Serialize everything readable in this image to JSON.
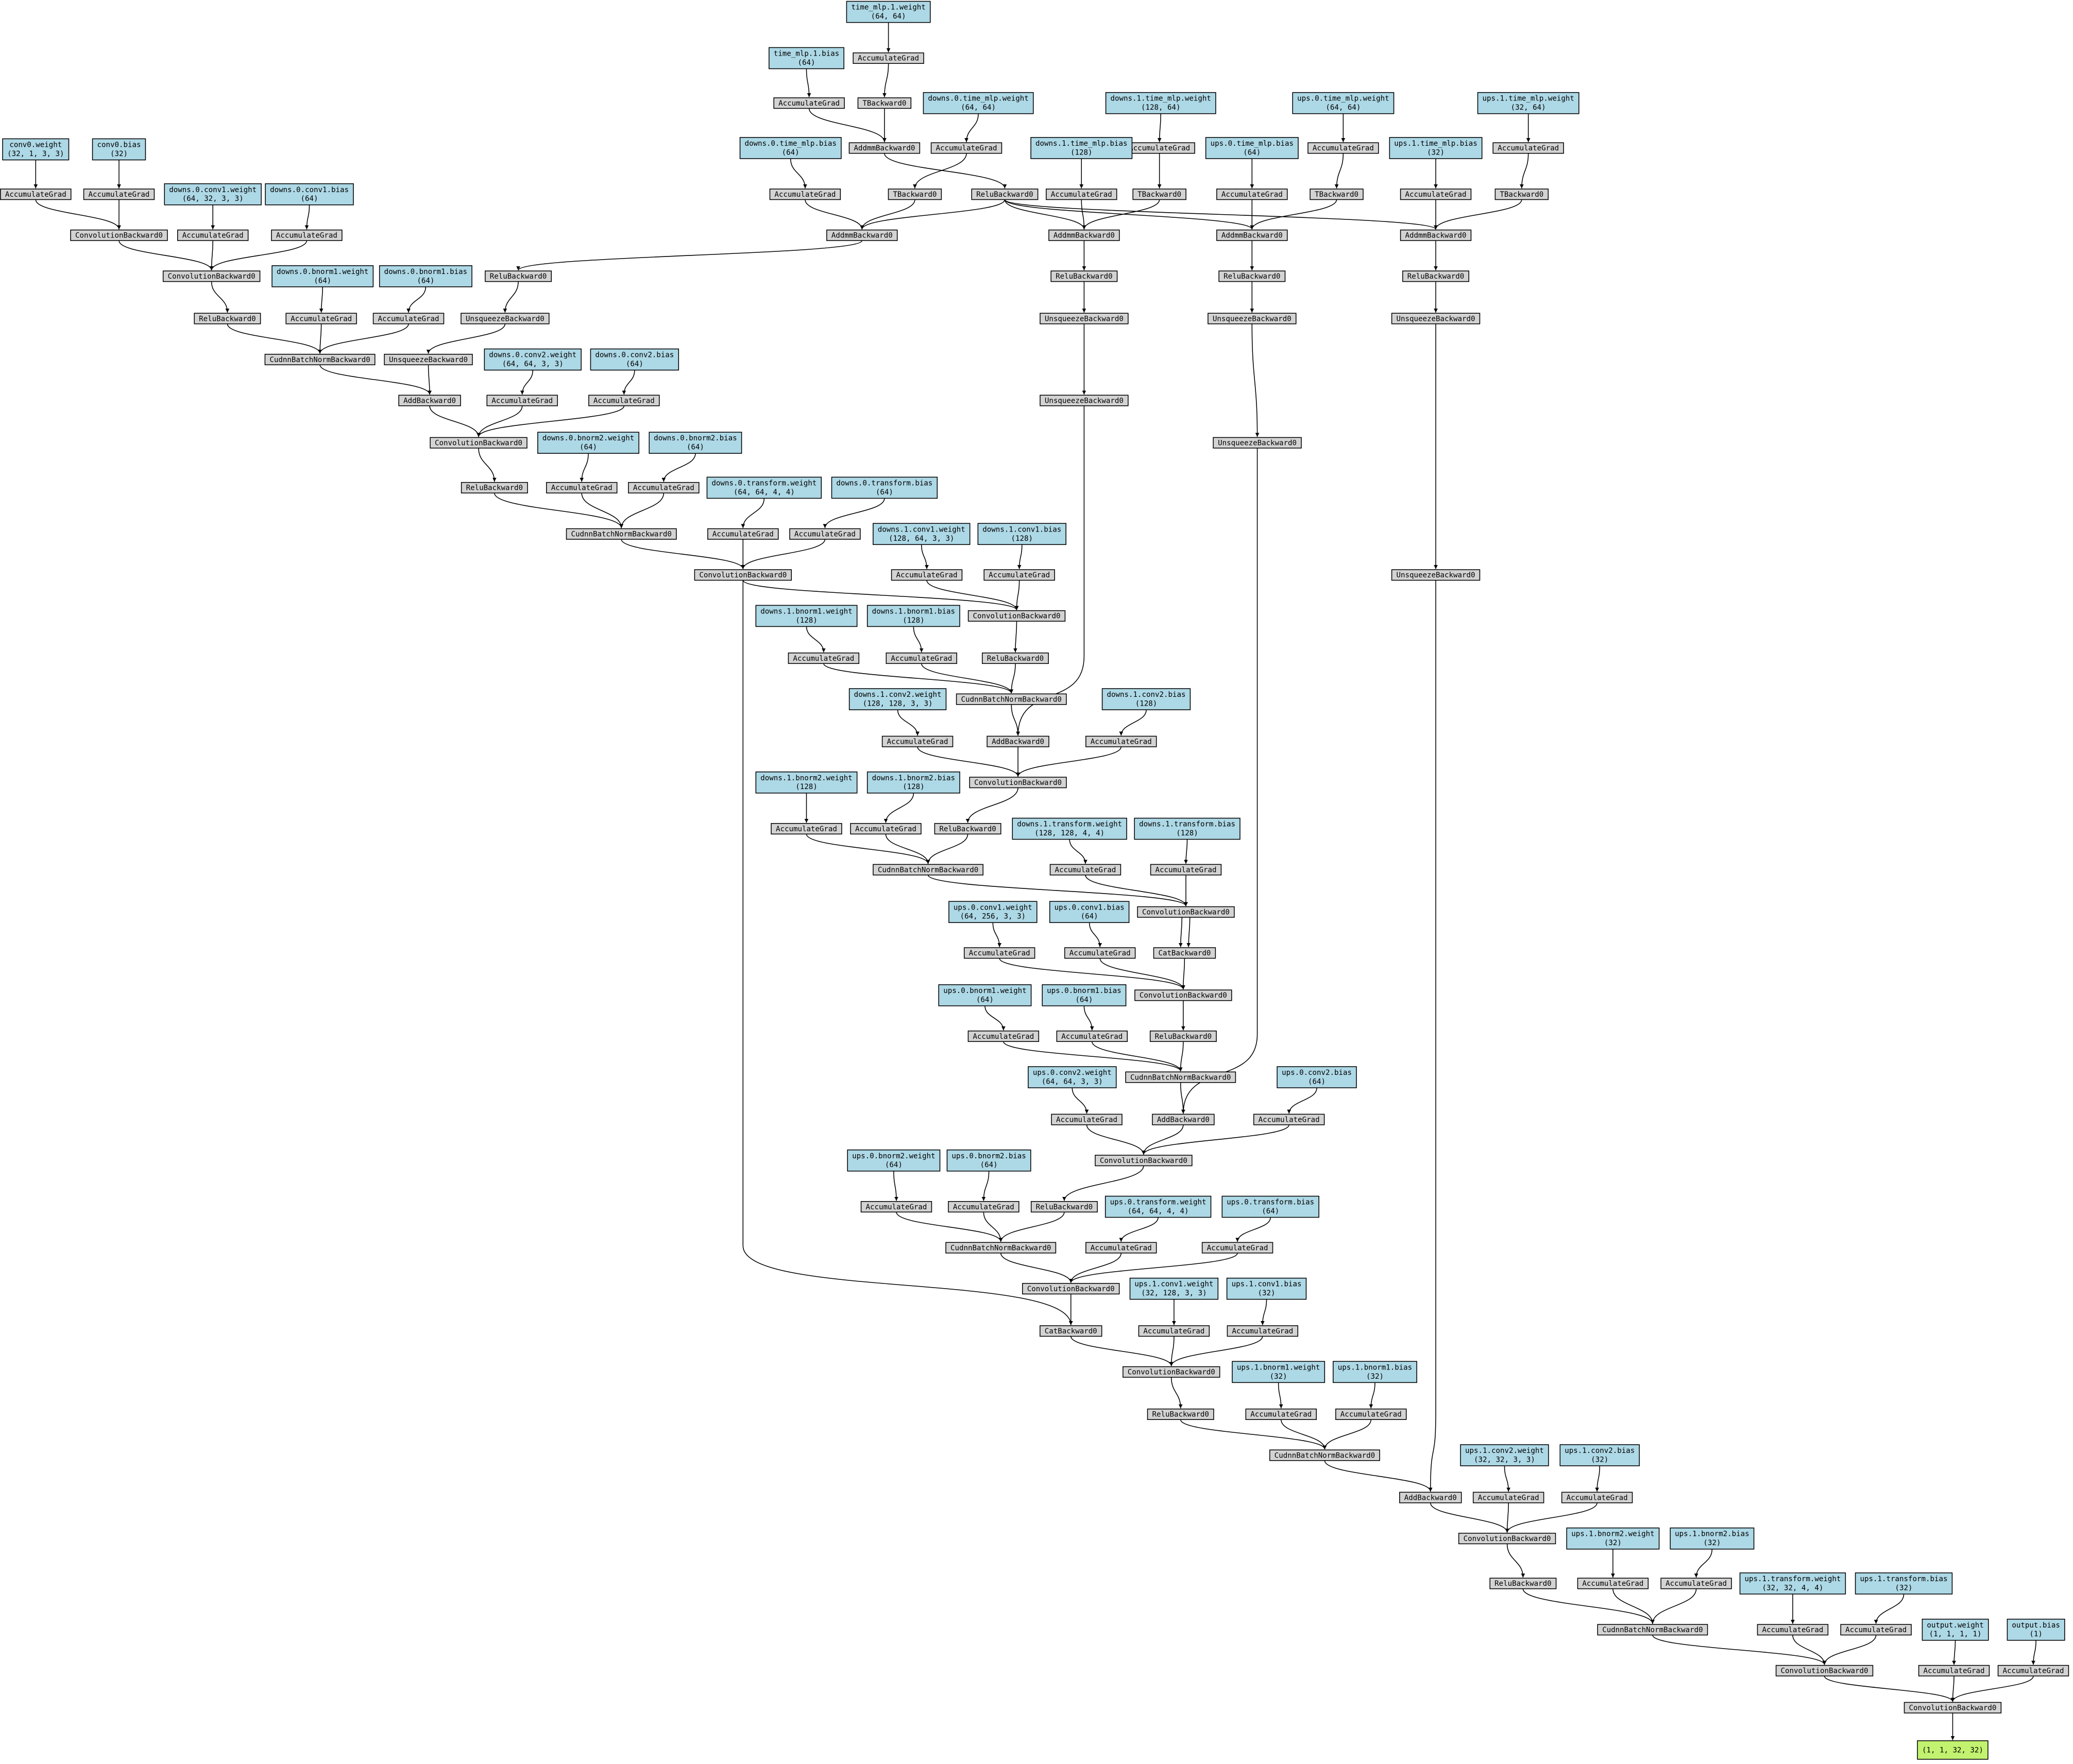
{
  "nodes": [
    {
      "label": "time_mlp.1.weight",
      "shape": "(64, 64)"
    },
    {
      "label": "AccumulateGrad"
    },
    {
      "label": "time_mlp.1.bias",
      "shape": "(64)"
    },
    {
      "label": "AccumulateGrad"
    },
    {
      "label": "TBackward0"
    },
    {
      "label": "downs.0.time_mlp.weight",
      "shape": "(64, 64)"
    },
    {
      "label": "AddmmBackward0"
    },
    {
      "label": "AccumulateGrad"
    },
    {
      "label": "downs.0.time_mlp.bias",
      "shape": "(64)"
    },
    {
      "label": "AccumulateGrad"
    },
    {
      "label": "TBackward0"
    },
    {
      "label": "ReluBackward0"
    },
    {
      "label": "AddmmBackward0"
    },
    {
      "label": "downs.1.time_mlp.weight",
      "shape": "(128, 64)"
    },
    {
      "label": "AccumulateGrad"
    },
    {
      "label": "TBackward0"
    },
    {
      "label": "downs.1.time_mlp.bias",
      "shape": "(128)"
    },
    {
      "label": "AccumulateGrad"
    },
    {
      "label": "AddmmBackward0"
    },
    {
      "label": "ups.0.time_mlp.weight",
      "shape": "(64, 64)"
    },
    {
      "label": "AccumulateGrad"
    },
    {
      "label": "TBackward0"
    },
    {
      "label": "ups.0.time_mlp.bias",
      "shape": "(64)"
    },
    {
      "label": "AccumulateGrad"
    },
    {
      "label": "AddmmBackward0"
    },
    {
      "label": "ups.1.time_mlp.weight",
      "shape": "(32, 64)"
    },
    {
      "label": "AccumulateGrad"
    },
    {
      "label": "TBackward0"
    },
    {
      "label": "ups.1.time_mlp.bias",
      "shape": "(32)"
    },
    {
      "label": "AccumulateGrad"
    },
    {
      "label": "AddmmBackward0"
    },
    {
      "label": "conv0.weight",
      "shape": "(32, 1, 3, 3)"
    },
    {
      "label": "AccumulateGrad"
    },
    {
      "label": "conv0.bias",
      "shape": "(32)"
    },
    {
      "label": "AccumulateGrad"
    },
    {
      "label": "ConvolutionBackward0"
    },
    {
      "label": "downs.0.conv1.weight",
      "shape": "(64, 32, 3, 3)"
    },
    {
      "label": "AccumulateGrad"
    },
    {
      "label": "downs.0.conv1.bias",
      "shape": "(64)"
    },
    {
      "label": "AccumulateGrad"
    },
    {
      "label": "ConvolutionBackward0"
    },
    {
      "label": "ReluBackward0"
    },
    {
      "label": "downs.0.bnorm1.weight",
      "shape": "(64)"
    },
    {
      "label": "AccumulateGrad"
    },
    {
      "label": "downs.0.bnorm1.bias",
      "shape": "(64)"
    },
    {
      "label": "AccumulateGrad"
    },
    {
      "label": "CudnnBatchNormBackward0"
    },
    {
      "label": "ReluBackward0"
    },
    {
      "label": "UnsqueezeBackward0"
    },
    {
      "label": "UnsqueezeBackward0"
    },
    {
      "label": "AddBackward0"
    },
    {
      "label": "downs.0.conv2.weight",
      "shape": "(64, 64, 3, 3)"
    },
    {
      "label": "AccumulateGrad"
    },
    {
      "label": "downs.0.conv2.bias",
      "shape": "(64)"
    },
    {
      "label": "AccumulateGrad"
    },
    {
      "label": "ConvolutionBackward0"
    },
    {
      "label": "ReluBackward0"
    },
    {
      "label": "downs.0.bnorm2.weight",
      "shape": "(64)"
    },
    {
      "label": "AccumulateGrad"
    },
    {
      "label": "downs.0.bnorm2.bias",
      "shape": "(64)"
    },
    {
      "label": "AccumulateGrad"
    },
    {
      "label": "CudnnBatchNormBackward0"
    },
    {
      "label": "downs.0.transform.weight",
      "shape": "(64, 64, 4, 4)"
    },
    {
      "label": "AccumulateGrad"
    },
    {
      "label": "downs.0.transform.bias",
      "shape": "(64)"
    },
    {
      "label": "AccumulateGrad"
    },
    {
      "label": "ConvolutionBackward0"
    },
    {
      "label": "downs.1.conv1.weight",
      "shape": "(128, 64, 3, 3)"
    },
    {
      "label": "AccumulateGrad"
    },
    {
      "label": "downs.1.conv1.bias",
      "shape": "(128)"
    },
    {
      "label": "AccumulateGrad"
    },
    {
      "label": "ConvolutionBackward0"
    },
    {
      "label": "ReluBackward0"
    },
    {
      "label": "downs.1.bnorm1.weight",
      "shape": "(128)"
    },
    {
      "label": "AccumulateGrad"
    },
    {
      "label": "downs.1.bnorm1.bias",
      "shape": "(128)"
    },
    {
      "label": "AccumulateGrad"
    },
    {
      "label": "CudnnBatchNormBackward0"
    },
    {
      "label": "ReluBackward0"
    },
    {
      "label": "UnsqueezeBackward0"
    },
    {
      "label": "UnsqueezeBackward0"
    },
    {
      "label": "AddBackward0"
    },
    {
      "label": "downs.1.conv2.weight",
      "shape": "(128, 128, 3, 3)"
    },
    {
      "label": "AccumulateGrad"
    },
    {
      "label": "downs.1.conv2.bias",
      "shape": "(128)"
    },
    {
      "label": "AccumulateGrad"
    },
    {
      "label": "ConvolutionBackward0"
    },
    {
      "label": "ReluBackward0"
    },
    {
      "label": "downs.1.bnorm2.weight",
      "shape": "(128)"
    },
    {
      "label": "AccumulateGrad"
    },
    {
      "label": "downs.1.bnorm2.bias",
      "shape": "(128)"
    },
    {
      "label": "AccumulateGrad"
    },
    {
      "label": "CudnnBatchNormBackward0"
    },
    {
      "label": "downs.1.transform.weight",
      "shape": "(128, 128, 4, 4)"
    },
    {
      "label": "AccumulateGrad"
    },
    {
      "label": "downs.1.transform.bias",
      "shape": "(128)"
    },
    {
      "label": "AccumulateGrad"
    },
    {
      "label": "ConvolutionBackward0"
    },
    {
      "label": "CatBackward0"
    },
    {
      "label": "ups.0.conv1.weight",
      "shape": "(64, 256, 3, 3)"
    },
    {
      "label": "AccumulateGrad"
    },
    {
      "label": "ups.0.conv1.bias",
      "shape": "(64)"
    },
    {
      "label": "AccumulateGrad"
    },
    {
      "label": "ConvolutionBackward0"
    },
    {
      "label": "ReluBackward0"
    },
    {
      "label": "ups.0.bnorm1.weight",
      "shape": "(64)"
    },
    {
      "label": "AccumulateGrad"
    },
    {
      "label": "ups.0.bnorm1.bias",
      "shape": "(64)"
    },
    {
      "label": "AccumulateGrad"
    },
    {
      "label": "CudnnBatchNormBackward0"
    },
    {
      "label": "ReluBackward0"
    },
    {
      "label": "UnsqueezeBackward0"
    },
    {
      "label": "UnsqueezeBackward0"
    },
    {
      "label": "AddBackward0"
    },
    {
      "label": "ups.0.conv2.weight",
      "shape": "(64, 64, 3, 3)"
    },
    {
      "label": "AccumulateGrad"
    },
    {
      "label": "ups.0.conv2.bias",
      "shape": "(64)"
    },
    {
      "label": "AccumulateGrad"
    },
    {
      "label": "ConvolutionBackward0"
    },
    {
      "label": "ReluBackward0"
    },
    {
      "label": "ups.0.bnorm2.weight",
      "shape": "(64)"
    },
    {
      "label": "AccumulateGrad"
    },
    {
      "label": "ups.0.bnorm2.bias",
      "shape": "(64)"
    },
    {
      "label": "AccumulateGrad"
    },
    {
      "label": "CudnnBatchNormBackward0"
    },
    {
      "label": "ups.0.transform.weight",
      "shape": "(64, 64, 4, 4)"
    },
    {
      "label": "AccumulateGrad"
    },
    {
      "label": "ups.0.transform.bias",
      "shape": "(64)"
    },
    {
      "label": "AccumulateGrad"
    },
    {
      "label": "ConvolutionBackward0"
    },
    {
      "label": "CatBackward0"
    },
    {
      "label": "ups.1.conv1.weight",
      "shape": "(32, 128, 3, 3)"
    },
    {
      "label": "AccumulateGrad"
    },
    {
      "label": "ups.1.conv1.bias",
      "shape": "(32)"
    },
    {
      "label": "AccumulateGrad"
    },
    {
      "label": "ConvolutionBackward0"
    },
    {
      "label": "ReluBackward0"
    },
    {
      "label": "ups.1.bnorm1.weight",
      "shape": "(32)"
    },
    {
      "label": "AccumulateGrad"
    },
    {
      "label": "ups.1.bnorm1.bias",
      "shape": "(32)"
    },
    {
      "label": "AccumulateGrad"
    },
    {
      "label": "CudnnBatchNormBackward0"
    },
    {
      "label": "ReluBackward0"
    },
    {
      "label": "UnsqueezeBackward0"
    },
    {
      "label": "UnsqueezeBackward0"
    },
    {
      "label": "AddBackward0"
    },
    {
      "label": "ups.1.conv2.weight",
      "shape": "(32, 32, 3, 3)"
    },
    {
      "label": "AccumulateGrad"
    },
    {
      "label": "ups.1.conv2.bias",
      "shape": "(32)"
    },
    {
      "label": "AccumulateGrad"
    },
    {
      "label": "ConvolutionBackward0"
    },
    {
      "label": "ReluBackward0"
    },
    {
      "label": "ups.1.bnorm2.weight",
      "shape": "(32)"
    },
    {
      "label": "AccumulateGrad"
    },
    {
      "label": "ups.1.bnorm2.bias",
      "shape": "(32)"
    },
    {
      "label": "AccumulateGrad"
    },
    {
      "label": "CudnnBatchNormBackward0"
    },
    {
      "label": "ups.1.transform.weight",
      "shape": "(32, 32, 4, 4)"
    },
    {
      "label": "AccumulateGrad"
    },
    {
      "label": "ups.1.transform.bias",
      "shape": "(32)"
    },
    {
      "label": "AccumulateGrad"
    },
    {
      "label": "ConvolutionBackward0"
    },
    {
      "label": "output.weight",
      "shape": "(1, 1, 1, 1)"
    },
    {
      "label": "AccumulateGrad"
    },
    {
      "label": "output.bias",
      "shape": "(1)"
    },
    {
      "label": "AccumulateGrad"
    },
    {
      "label": "ConvolutionBackward0"
    },
    {
      "label": "(1, 1, 32, 32)"
    }
  ]
}
